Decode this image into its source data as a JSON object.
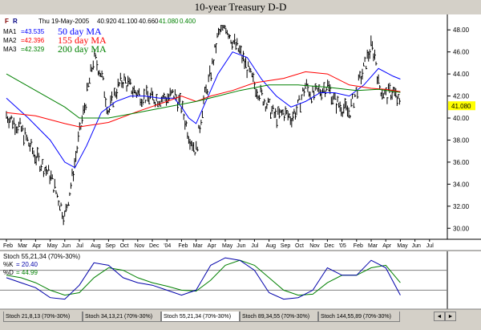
{
  "title": "10-year Treasury D-D",
  "header_bar": {
    "tools": [
      "F",
      "R"
    ],
    "date": "Thu 19-May-2005",
    "open": "40.920",
    "high": "41.100",
    "low": "40.660",
    "close": "41.080",
    "change": "0.400"
  },
  "moving_averages": [
    {
      "key": "MA1",
      "value": "=43.535",
      "label": "50 day MA",
      "color": "#0000ff"
    },
    {
      "key": "MA2",
      "value": "=42.396",
      "label": "155 day MA",
      "color": "#ff0000"
    },
    {
      "key": "MA3",
      "value": "=42.329",
      "label": "200 day MA",
      "color": "#008000"
    }
  ],
  "last_price_label": "41.080",
  "stoch_panel": {
    "title": "Stoch 55,21,34 (70%-30%)",
    "k_label": "%K",
    "k_value": "= 20.40",
    "d_label": "%D",
    "d_value": "= 44.99"
  },
  "tabs": [
    {
      "label": "Stoch 21,8,13 (70%-30%)",
      "active": false
    },
    {
      "label": "Stoch 34,13,21 (70%-30%)",
      "active": false
    },
    {
      "label": "Stoch 55,21,34 (70%-30%)",
      "active": true
    },
    {
      "label": "Stoch 89,34,55 (70%-30%)",
      "active": false
    },
    {
      "label": "Stoch 144,55,89 (70%-30%)",
      "active": false
    }
  ],
  "nav_buttons": [
    "◄",
    "►"
  ],
  "colors": {
    "bars": "#000000",
    "k_line": "#0000aa",
    "d_line": "#008000",
    "highlight": "#ffff00"
  },
  "chart_data": {
    "type": "line",
    "title": "10-year Treasury D-D",
    "x_tick_labels": [
      "Feb",
      "Mar",
      "Apr",
      "May",
      "Jun",
      "Jul",
      "Aug",
      "Sep",
      "Oct",
      "Nov",
      "Dec",
      "'04",
      "Feb",
      "Mar",
      "Apr",
      "May",
      "Jun",
      "Jul",
      "Aug",
      "Sep",
      "Oct",
      "Nov",
      "Dec",
      "'05",
      "Feb",
      "Mar",
      "Apr",
      "May",
      "Jun",
      "Jul"
    ],
    "y_ticks": [
      "30.00",
      "32.00",
      "34.00",
      "36.00",
      "38.00",
      "40.00",
      "42.00",
      "44.00",
      "46.00",
      "48.00"
    ],
    "ylim": [
      29,
      49.4
    ],
    "price_path": [
      [
        0,
        40.3
      ],
      [
        1.0,
        39.0
      ],
      [
        2.0,
        36.5
      ],
      [
        3.0,
        34.8
      ],
      [
        4.0,
        31.0
      ],
      [
        4.5,
        34.5
      ],
      [
        5.0,
        38.5
      ],
      [
        5.5,
        42.0
      ],
      [
        6.0,
        45.5
      ],
      [
        6.5,
        44.0
      ],
      [
        7.0,
        40.5
      ],
      [
        7.5,
        42.5
      ],
      [
        8.0,
        43.5
      ],
      [
        8.7,
        42.5
      ],
      [
        9.3,
        42.0
      ],
      [
        10.0,
        41.8
      ],
      [
        11.0,
        41.8
      ],
      [
        11.5,
        42.2
      ],
      [
        12.0,
        41.0
      ],
      [
        12.5,
        38.5
      ],
      [
        13.0,
        37.0
      ],
      [
        13.5,
        41.5
      ],
      [
        14.0,
        44.0
      ],
      [
        14.5,
        47.5
      ],
      [
        15.0,
        48.5
      ],
      [
        15.5,
        47.0
      ],
      [
        16.0,
        46.0
      ],
      [
        16.5,
        44.5
      ],
      [
        17.0,
        43.0
      ],
      [
        17.5,
        42.0
      ],
      [
        18.0,
        41.0
      ],
      [
        18.5,
        40.0
      ],
      [
        19.0,
        40.5
      ],
      [
        19.5,
        40.0
      ],
      [
        20.0,
        41.0
      ],
      [
        20.5,
        43.0
      ],
      [
        21.0,
        42.0
      ],
      [
        21.5,
        42.5
      ],
      [
        22.0,
        43.0
      ],
      [
        22.5,
        41.5
      ],
      [
        23.0,
        41.0
      ],
      [
        23.5,
        40.5
      ],
      [
        24.0,
        42.5
      ],
      [
        24.5,
        44.5
      ],
      [
        25.0,
        46.5
      ],
      [
        25.3,
        45.5
      ],
      [
        25.5,
        43.0
      ],
      [
        26.0,
        42.0
      ],
      [
        26.5,
        42.5
      ],
      [
        27.0,
        41.0
      ]
    ],
    "series": [
      {
        "name": "50 day MA",
        "values": [
          [
            0,
            41.8
          ],
          [
            1.5,
            40.0
          ],
          [
            3.0,
            38.0
          ],
          [
            4.0,
            36.0
          ],
          [
            4.7,
            35.5
          ],
          [
            5.5,
            37.5
          ],
          [
            6.5,
            40.5
          ],
          [
            7.5,
            41.5
          ],
          [
            8.5,
            42.0
          ],
          [
            9.5,
            42.0
          ],
          [
            10.5,
            41.8
          ],
          [
            11.5,
            41.8
          ],
          [
            12.0,
            41.0
          ],
          [
            12.5,
            40.0
          ],
          [
            13.0,
            39.5
          ],
          [
            13.5,
            41.0
          ],
          [
            14.5,
            44.0
          ],
          [
            15.5,
            46.0
          ],
          [
            16.5,
            45.5
          ],
          [
            17.5,
            43.5
          ],
          [
            18.5,
            42.0
          ],
          [
            19.5,
            41.0
          ],
          [
            20.5,
            41.5
          ],
          [
            21.5,
            42.3
          ],
          [
            22.5,
            42.3
          ],
          [
            23.5,
            42.0
          ],
          [
            24.5,
            43.0
          ],
          [
            25.5,
            44.5
          ],
          [
            26.5,
            43.8
          ],
          [
            27.0,
            43.535
          ]
        ]
      },
      {
        "name": "155 day MA",
        "values": [
          [
            0,
            40.5
          ],
          [
            2.0,
            40.2
          ],
          [
            4.0,
            39.5
          ],
          [
            5.0,
            39.2
          ],
          [
            7.0,
            39.6
          ],
          [
            9.0,
            40.6
          ],
          [
            11.0,
            41.5
          ],
          [
            12.0,
            42.0
          ],
          [
            13.0,
            41.5
          ],
          [
            14.0,
            42.0
          ],
          [
            15.5,
            42.5
          ],
          [
            17.0,
            43.2
          ],
          [
            19.0,
            43.6
          ],
          [
            20.5,
            44.2
          ],
          [
            22.0,
            44.0
          ],
          [
            23.5,
            43.0
          ],
          [
            25.0,
            42.7
          ],
          [
            26.0,
            42.6
          ],
          [
            27.0,
            42.396
          ]
        ]
      },
      {
        "name": "200 day MA",
        "values": [
          [
            0,
            44.0
          ],
          [
            2.0,
            42.5
          ],
          [
            4.0,
            41.0
          ],
          [
            5.0,
            40.0
          ],
          [
            7.0,
            40.0
          ],
          [
            9.0,
            40.5
          ],
          [
            11.0,
            41.0
          ],
          [
            13.0,
            41.5
          ],
          [
            14.5,
            42.0
          ],
          [
            16.0,
            42.5
          ],
          [
            18.0,
            43.0
          ],
          [
            20.0,
            43.0
          ],
          [
            22.0,
            42.8
          ],
          [
            24.0,
            42.5
          ],
          [
            25.5,
            42.6
          ],
          [
            27.0,
            42.329
          ]
        ]
      }
    ],
    "stochastic": {
      "title": "Stoch 55,21,34 (70%-30%)",
      "levels": [
        70,
        30
      ],
      "k_values": [
        [
          0,
          55
        ],
        [
          1,
          45
        ],
        [
          2,
          35
        ],
        [
          3,
          15
        ],
        [
          4,
          12
        ],
        [
          5,
          40
        ],
        [
          6,
          85
        ],
        [
          7,
          80
        ],
        [
          8,
          55
        ],
        [
          9,
          45
        ],
        [
          10,
          40
        ],
        [
          11,
          30
        ],
        [
          12,
          20
        ],
        [
          13,
          30
        ],
        [
          14,
          80
        ],
        [
          15,
          95
        ],
        [
          16,
          90
        ],
        [
          17,
          70
        ],
        [
          18,
          25
        ],
        [
          19,
          12
        ],
        [
          20,
          15
        ],
        [
          21,
          30
        ],
        [
          22,
          75
        ],
        [
          23,
          60
        ],
        [
          24,
          60
        ],
        [
          25,
          90
        ],
        [
          26,
          75
        ],
        [
          27,
          20
        ]
      ],
      "d_values": [
        [
          0,
          60
        ],
        [
          1,
          55
        ],
        [
          2,
          45
        ],
        [
          3,
          30
        ],
        [
          4,
          20
        ],
        [
          5,
          25
        ],
        [
          6,
          55
        ],
        [
          7,
          75
        ],
        [
          8,
          70
        ],
        [
          9,
          55
        ],
        [
          10,
          45
        ],
        [
          11,
          38
        ],
        [
          12,
          30
        ],
        [
          13,
          28
        ],
        [
          14,
          50
        ],
        [
          15,
          80
        ],
        [
          16,
          90
        ],
        [
          17,
          80
        ],
        [
          18,
          55
        ],
        [
          19,
          30
        ],
        [
          20,
          20
        ],
        [
          21,
          22
        ],
        [
          22,
          45
        ],
        [
          23,
          60
        ],
        [
          24,
          60
        ],
        [
          25,
          75
        ],
        [
          26,
          80
        ],
        [
          27,
          45
        ]
      ]
    }
  }
}
